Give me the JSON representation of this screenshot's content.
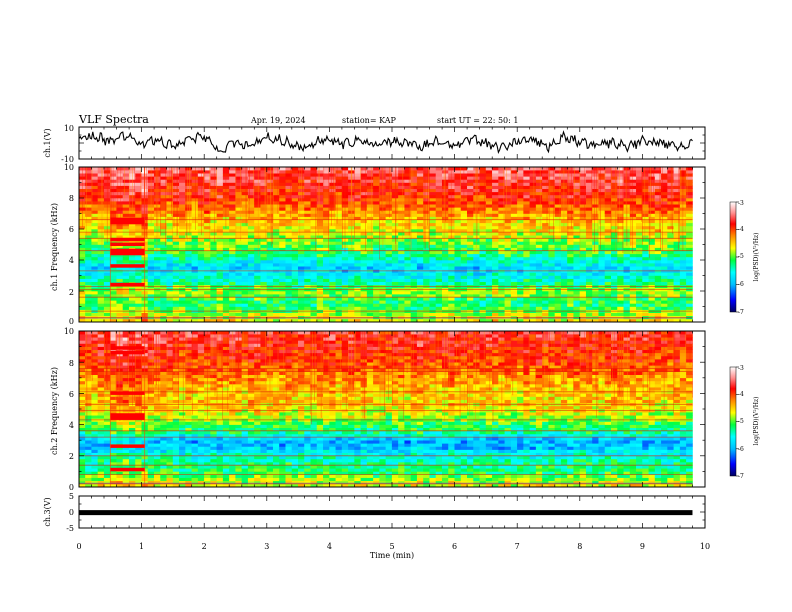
{
  "header": {
    "title": "VLF Spectra",
    "date": "Apr. 19, 2024",
    "station": "station= KAP",
    "start": "start  UT  =   22: 50: 1"
  },
  "chart_data": [
    {
      "type": "line",
      "panel": "ch1-waveform",
      "ylabel": "ch.1(V)",
      "ylim": [
        -10,
        10
      ],
      "yticks": [
        "10",
        "-10"
      ],
      "x_range_min": [
        0,
        10
      ],
      "data_extent_min": [
        0,
        9.8
      ],
      "series": [
        {
          "x_min": [
            0,
            0.25,
            0.5,
            0.75,
            1,
            1.25,
            1.5,
            1.75,
            2,
            2.25,
            2.5,
            2.75,
            3,
            3.25,
            3.5,
            3.75,
            4,
            4.25,
            4.5,
            4.75,
            5,
            5.25,
            5.5,
            5.75,
            6,
            6.25,
            6.5,
            6.75,
            7,
            7.25,
            7.5,
            7.75,
            8,
            8.25,
            8.5,
            8.75,
            9,
            9.25,
            9.5,
            9.8
          ],
          "y_v": [
            3,
            4,
            1,
            5,
            -1,
            2,
            -2,
            3,
            4,
            -5,
            1,
            -2,
            3,
            2,
            -3,
            0,
            3,
            -1,
            2,
            -2,
            1,
            0,
            -2,
            2,
            -1,
            3,
            0,
            -3,
            1,
            2,
            -2,
            4,
            1,
            -1,
            0,
            -2,
            1,
            0,
            -2,
            -1
          ]
        }
      ],
      "color": "#000000"
    },
    {
      "type": "heatmap",
      "panel": "ch1-spectrogram",
      "ylabel": "ch.1 Frequency (kHz)",
      "ylim_khz": [
        0,
        10
      ],
      "yticks": [
        "0",
        "2",
        "4",
        "6",
        "8",
        "10"
      ],
      "x_range_min": [
        0,
        10
      ],
      "data_extent_min": [
        0,
        9.8
      ],
      "colorbar": {
        "label": "log(PSD)(V²/Hz)",
        "range": [
          -7,
          -3
        ],
        "ticks": [
          "-3",
          "-4",
          "-5",
          "-6",
          "-7"
        ],
        "colors": [
          "#000080",
          "#0000ff",
          "#00bfff",
          "#00ffff",
          "#00ff40",
          "#ffff00",
          "#ff8000",
          "#ff0000",
          "#ff9090",
          "#ffffff"
        ]
      },
      "freq_profile_khz": [
        0,
        0.5,
        1,
        1.5,
        2,
        2.5,
        3,
        3.5,
        4,
        4.5,
        5,
        5.5,
        6,
        6.5,
        7,
        7.5,
        8,
        8.5,
        9,
        9.5,
        10
      ],
      "log_psd_profile": [
        -4.6,
        -4.8,
        -5.2,
        -5.1,
        -4.8,
        -5.3,
        -5.6,
        -5.8,
        -5.5,
        -5.1,
        -5.0,
        -4.8,
        -4.6,
        -4.5,
        -4.3,
        -4.1,
        -3.9,
        -3.8,
        -3.7,
        -3.6,
        -3.5
      ],
      "lines_khz": [
        0.3,
        0.7,
        1.6,
        2.1,
        2.3,
        3.3,
        4.6,
        5.4,
        5.8,
        6.6
      ],
      "burst_min": [
        0.5,
        1.05
      ],
      "burst_lines_khz": [
        2.4,
        3.6,
        4.4,
        4.6,
        5.0,
        5.3,
        6.4,
        6.6
      ]
    },
    {
      "type": "heatmap",
      "panel": "ch2-spectrogram",
      "ylabel": "ch.2 Frequency (kHz)",
      "ylim_khz": [
        0,
        10
      ],
      "yticks": [
        "0",
        "2",
        "4",
        "6",
        "8",
        "10"
      ],
      "x_range_min": [
        0,
        10
      ],
      "data_extent_min": [
        0,
        9.8
      ],
      "colorbar": {
        "label": "log(PSD)(V²/Hz)",
        "range": [
          -7,
          -3
        ],
        "ticks": [
          "-3",
          "-4",
          "-5",
          "-6",
          "-7"
        ]
      },
      "freq_profile_khz": [
        0,
        0.5,
        1,
        1.5,
        2,
        2.5,
        3,
        3.5,
        4,
        4.5,
        5,
        5.5,
        6,
        6.5,
        7,
        7.5,
        8,
        8.5,
        9,
        9.5,
        10
      ],
      "log_psd_profile": [
        -4.6,
        -4.9,
        -5.2,
        -5.3,
        -5.5,
        -5.9,
        -6.0,
        -5.3,
        -5.1,
        -4.8,
        -4.6,
        -4.5,
        -4.5,
        -4.4,
        -4.3,
        -4.1,
        -4.0,
        -3.9,
        -3.8,
        -3.7,
        -3.7
      ],
      "lines_khz": [
        0.2,
        0.8,
        1.4,
        2.0,
        3.2,
        3.6,
        4.3,
        4.9,
        5.3,
        6.1,
        7.4,
        7.6
      ],
      "burst_min": [
        0.5,
        1.05
      ],
      "burst_lines_khz": [
        1.1,
        2.6,
        4.4,
        4.6,
        6.0,
        8.6,
        8.9
      ]
    },
    {
      "type": "line",
      "panel": "ch3-constant",
      "ylabel": "ch.3(V)",
      "ylim": [
        -5,
        5
      ],
      "yticks": [
        "5",
        "0",
        "-5"
      ],
      "x_range_min": [
        0,
        10
      ],
      "data_extent_min": [
        0,
        9.8
      ],
      "series": [
        {
          "x_min": [
            0,
            9.8
          ],
          "y_v": [
            -0.2,
            -0.2
          ]
        }
      ],
      "color": "#000000"
    }
  ],
  "xaxis": {
    "label": "Time (min)",
    "ticks": [
      "0",
      "1",
      "2",
      "3",
      "4",
      "5",
      "6",
      "7",
      "8",
      "9",
      "10"
    ]
  }
}
